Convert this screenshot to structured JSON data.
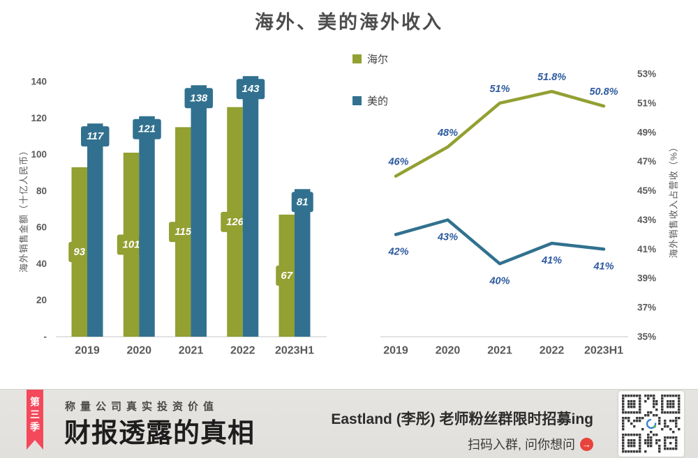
{
  "title": "海外、美的海外收入",
  "palette": {
    "haier": "#93a032",
    "midea": "#31718f",
    "bar_label_text": "#ffffff",
    "line_label_text": "#2d5aa0",
    "axis_text": "#595959",
    "baseline": "#d9d9d9",
    "ribbon_red": "#f4485b",
    "arrow_red": "#e8433c",
    "footer_bg": "#e3e1dd"
  },
  "legend": {
    "items": [
      {
        "label": "海尔",
        "color": "#93a032"
      },
      {
        "label": "美的",
        "color": "#31718f"
      }
    ]
  },
  "chart_data": [
    {
      "type": "bar",
      "title": "海外、美的海外收入",
      "categories": [
        "2019",
        "2020",
        "2021",
        "2022",
        "2023H1"
      ],
      "series": [
        {
          "name": "海尔",
          "color": "#93a032",
          "values": [
            93,
            101,
            115,
            126,
            67
          ],
          "labels": [
            "93",
            "101",
            "115",
            "126",
            "67"
          ],
          "label_position": "inside-center"
        },
        {
          "name": "美的",
          "color": "#31718f",
          "values": [
            117,
            121,
            138,
            143,
            81
          ],
          "labels": [
            "117",
            "121",
            "138",
            "143",
            "81"
          ],
          "label_position": "inside-top"
        }
      ],
      "ylabel": "海外销售金额（十亿人民币）",
      "ylim": [
        0,
        140
      ],
      "ytick_values": [
        140,
        120,
        100,
        80,
        60,
        40,
        20,
        0
      ],
      "ytick_labels": [
        "140",
        "120",
        "100",
        "80",
        "60",
        "40",
        "20",
        "-"
      ],
      "grid": false,
      "legend_position": "center-between-charts"
    },
    {
      "type": "line",
      "categories": [
        "2019",
        "2020",
        "2021",
        "2022",
        "2023H1"
      ],
      "series": [
        {
          "name": "海尔",
          "color": "#93a032",
          "values": [
            46,
            48,
            51,
            51.8,
            50.8
          ],
          "labels": [
            "46%",
            "48%",
            "51%",
            "51.8%",
            "50.8%"
          ],
          "label_position": "above"
        },
        {
          "name": "美的",
          "color": "#31718f",
          "values": [
            42,
            43,
            40,
            41.4,
            41
          ],
          "labels": [
            "42%",
            "43%",
            "40%",
            "41%",
            "41%"
          ],
          "label_position": "below"
        }
      ],
      "ylabel": "海外销售收入占营收（%）",
      "ylim": [
        35,
        53
      ],
      "ytick_values": [
        53,
        51,
        49,
        47,
        45,
        43,
        41,
        39,
        37,
        35
      ],
      "ytick_labels": [
        "53%",
        "51%",
        "49%",
        "47%",
        "45%",
        "43%",
        "41%",
        "39%",
        "37%",
        "35%"
      ],
      "grid": false,
      "yaxis_side": "right"
    }
  ],
  "footer": {
    "ribbon": "第三季",
    "tagline": "称量公司真实投资价值",
    "series_title": "财报透露的真相",
    "promo_line1": "Eastland (李彤) 老师粉丝群限时招募ing",
    "promo_line2": "扫码入群, 问你想问",
    "arrow_icon": "→",
    "qr_label": "qr-code"
  }
}
